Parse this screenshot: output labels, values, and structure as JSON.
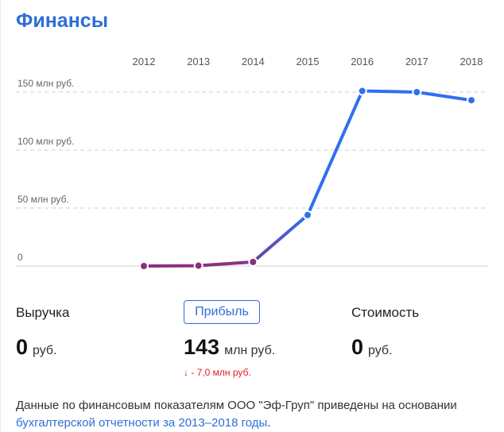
{
  "section_title": "Финансы",
  "chart_data": {
    "type": "line",
    "x": [
      "2012",
      "2013",
      "2014",
      "2015",
      "2016",
      "2017",
      "2018"
    ],
    "series": [
      {
        "values": [
          0,
          0.3,
          3.5,
          44,
          151,
          150,
          143
        ]
      }
    ],
    "y_tick_values": [
      0,
      50,
      100,
      150
    ],
    "y_tick_labels": [
      "0",
      "50 млн руб.",
      "100 млн руб.",
      "150 млн руб."
    ],
    "ylim": [
      0,
      160
    ],
    "grid": "horizontal-dashed",
    "colors": {
      "low": "#8b2f7e",
      "high": "#2f6ff0"
    }
  },
  "metrics": {
    "revenue": {
      "label": "Выручка",
      "value": "0",
      "unit": "руб."
    },
    "profit": {
      "label": "Прибыль",
      "value": "143",
      "unit": "млн руб.",
      "change": "↓ - 7,0 млн руб."
    },
    "value": {
      "label": "Стоимость",
      "value": "0",
      "unit": "руб."
    }
  },
  "footnote": {
    "text": "Данные по финансовым показателям ООО \"Эф-Груп\" приведены на основании ",
    "link": "бухгалтерской отчетности за 2013–2018 годы",
    "end": "."
  }
}
